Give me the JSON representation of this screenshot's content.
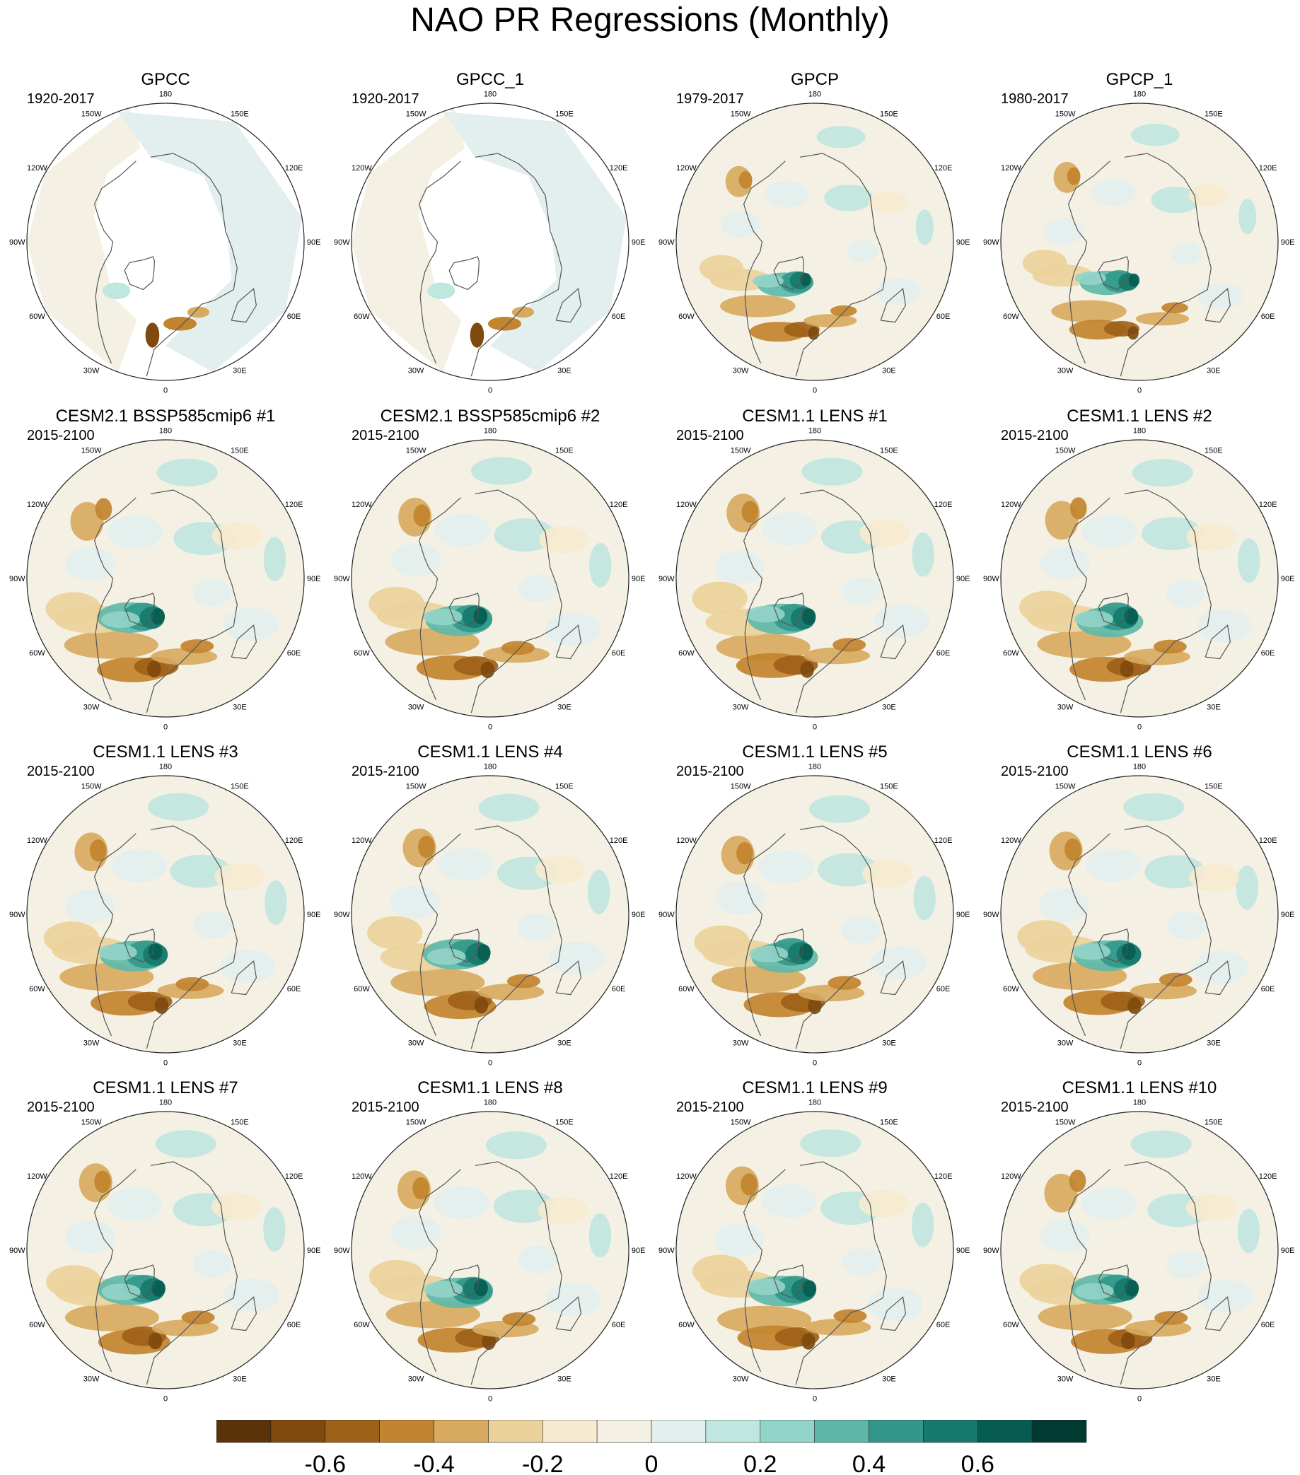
{
  "title": "NAO PR Regressions (Monthly)",
  "longitude_labels": [
    "180",
    "150E",
    "120E",
    "90E",
    "60E",
    "30E",
    "0",
    "30W",
    "60W",
    "90W",
    "120W",
    "150W"
  ],
  "panels": [
    {
      "title": "GPCC",
      "period": "1920-2017"
    },
    {
      "title": "GPCC_1",
      "period": "1920-2017"
    },
    {
      "title": "GPCP",
      "period": "1979-2017"
    },
    {
      "title": "GPCP_1",
      "period": "1980-2017"
    },
    {
      "title": "CESM2.1 BSSP585cmip6 #1",
      "period": "2015-2100"
    },
    {
      "title": "CESM2.1 BSSP585cmip6 #2",
      "period": "2015-2100"
    },
    {
      "title": "CESM1.1 LENS #1",
      "period": "2015-2100"
    },
    {
      "title": "CESM1.1 LENS #2",
      "period": "2015-2100"
    },
    {
      "title": "CESM1.1 LENS #3",
      "period": "2015-2100"
    },
    {
      "title": "CESM1.1 LENS #4",
      "period": "2015-2100"
    },
    {
      "title": "CESM1.1 LENS #5",
      "period": "2015-2100"
    },
    {
      "title": "CESM1.1 LENS #6",
      "period": "2015-2100"
    },
    {
      "title": "CESM1.1 LENS #7",
      "period": "2015-2100"
    },
    {
      "title": "CESM1.1 LENS #8",
      "period": "2015-2100"
    },
    {
      "title": "CESM1.1 LENS #9",
      "period": "2015-2100"
    },
    {
      "title": "CESM1.1 LENS #10",
      "period": "2015-2100"
    }
  ],
  "colorbar": {
    "colors": [
      "#5a3408",
      "#7e4a0d",
      "#9e6118",
      "#c2842f",
      "#d7aa5f",
      "#ebd29c",
      "#f6ead0",
      "#f4f1e4",
      "#e3efee",
      "#c0e6e0",
      "#92d4c8",
      "#5eb8a8",
      "#33988b",
      "#17796d",
      "#075c51",
      "#003a30"
    ],
    "tick_labels": [
      "-0.6",
      "-0.4",
      "-0.2",
      "0",
      "0.2",
      "0.4",
      "0.6"
    ]
  }
}
